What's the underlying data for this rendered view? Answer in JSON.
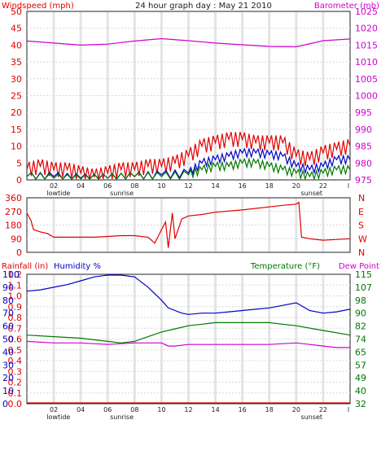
{
  "title": "24 hour graph day : May 21 2010",
  "colors": {
    "red": "#e00000",
    "blue": "#0000c8",
    "green": "#007800",
    "magenta": "#d000d0",
    "grid": "#d8d8d8",
    "band": "#e4e4e4",
    "dark": "#202020"
  },
  "x_axis": {
    "hours": [
      "02",
      "04",
      "06",
      "08",
      "10",
      "12",
      "14",
      "16",
      "18",
      "20",
      "22"
    ],
    "last_tick": "l",
    "markers": [
      {
        "label": "lowtide",
        "hour": 1.5
      },
      {
        "label": "sunrise",
        "hour": 6.2
      },
      {
        "label": "sunset",
        "hour": 20.3
      }
    ]
  },
  "chart_data": [
    {
      "type": "line",
      "name": "wind-baro",
      "y_left": {
        "label": "Windspeed (mph)",
        "min": 0,
        "max": 50,
        "ticks": [
          "0",
          "5",
          "10",
          "15",
          "20",
          "25",
          "30",
          "35",
          "40",
          "45",
          "50"
        ]
      },
      "y_right": {
        "label": "Barometer (mb)",
        "min": 975,
        "max": 1025,
        "ticks": [
          "975",
          "980",
          "985",
          "990",
          "995",
          "1000",
          "1005",
          "1010",
          "1015",
          "1020",
          "1025"
        ]
      },
      "series": [
        {
          "axis": "right",
          "color": "magenta",
          "points": [
            [
              0,
              1016.2
            ],
            [
              2,
              1015.6
            ],
            [
              4,
              1015.0
            ],
            [
              6,
              1015.3
            ],
            [
              8,
              1016.2
            ],
            [
              10,
              1016.9
            ],
            [
              12,
              1016.3
            ],
            [
              14,
              1015.6
            ],
            [
              16,
              1015.1
            ],
            [
              18,
              1014.6
            ],
            [
              20,
              1014.5
            ],
            [
              22,
              1016.3
            ],
            [
              24,
              1016.8
            ]
          ]
        },
        {
          "axis": "left",
          "color": "red",
          "points": [
            [
              0,
              3
            ],
            [
              1,
              4
            ],
            [
              2,
              3
            ],
            [
              3,
              3
            ],
            [
              4,
              2
            ],
            [
              5,
              1
            ],
            [
              6,
              2
            ],
            [
              7,
              3
            ],
            [
              8,
              3
            ],
            [
              9,
              4
            ],
            [
              10,
              4
            ],
            [
              11,
              5
            ],
            [
              12,
              7
            ],
            [
              13,
              10
            ],
            [
              14,
              11
            ],
            [
              15,
              12
            ],
            [
              16,
              12
            ],
            [
              17,
              11
            ],
            [
              18,
              11
            ],
            [
              19,
              11
            ],
            [
              20,
              7
            ],
            [
              21,
              6
            ],
            [
              22,
              8
            ],
            [
              23,
              9
            ],
            [
              24,
              10
            ]
          ]
        },
        {
          "axis": "left",
          "color": "blue",
          "points": [
            [
              0,
              1
            ],
            [
              2,
              1
            ],
            [
              4,
              0.5
            ],
            [
              6,
              0.5
            ],
            [
              8,
              1
            ],
            [
              10,
              1.5
            ],
            [
              12,
              2
            ],
            [
              13,
              5
            ],
            [
              14,
              6
            ],
            [
              15,
              7
            ],
            [
              16,
              8
            ],
            [
              17,
              8
            ],
            [
              18,
              7.5
            ],
            [
              19,
              7
            ],
            [
              20,
              4
            ],
            [
              21,
              3
            ],
            [
              22,
              4
            ],
            [
              23,
              6
            ],
            [
              24,
              6
            ]
          ]
        },
        {
          "axis": "left",
          "color": "green",
          "points": [
            [
              0,
              1
            ],
            [
              2,
              0.5
            ],
            [
              4,
              0.3
            ],
            [
              6,
              0.5
            ],
            [
              8,
              1
            ],
            [
              10,
              1
            ],
            [
              12,
              1.5
            ],
            [
              13,
              3
            ],
            [
              14,
              4
            ],
            [
              15,
              4
            ],
            [
              16,
              5
            ],
            [
              17,
              5
            ],
            [
              18,
              4
            ],
            [
              19,
              3
            ],
            [
              20,
              2
            ],
            [
              21,
              1
            ],
            [
              22,
              2
            ],
            [
              23,
              3
            ],
            [
              24,
              3
            ]
          ]
        }
      ]
    },
    {
      "type": "line",
      "name": "wind-direction",
      "y_left": {
        "label": "",
        "min": 0,
        "max": 360,
        "ticks": [
          "0",
          "90",
          "180",
          "270",
          "360"
        ]
      },
      "y_right": {
        "label": "",
        "ticks": [
          "N",
          "W",
          "S",
          "E",
          "N"
        ]
      },
      "series": [
        {
          "axis": "left",
          "color": "red",
          "points": [
            [
              0,
              260
            ],
            [
              0.3,
              210
            ],
            [
              0.5,
              150
            ],
            [
              1,
              135
            ],
            [
              1.5,
              125
            ],
            [
              2,
              100
            ],
            [
              3,
              100
            ],
            [
              4,
              100
            ],
            [
              5,
              100
            ],
            [
              6,
              105
            ],
            [
              7,
              110
            ],
            [
              8,
              110
            ],
            [
              9,
              100
            ],
            [
              9.5,
              60
            ],
            [
              10,
              150
            ],
            [
              10.3,
              200
            ],
            [
              10.5,
              30
            ],
            [
              10.8,
              260
            ],
            [
              11,
              90
            ],
            [
              11.5,
              220
            ],
            [
              12,
              240
            ],
            [
              13,
              250
            ],
            [
              14,
              265
            ],
            [
              16,
              280
            ],
            [
              18,
              300
            ],
            [
              19,
              310
            ],
            [
              20,
              318
            ],
            [
              20.2,
              330
            ],
            [
              20.4,
              100
            ],
            [
              21,
              90
            ],
            [
              22,
              80
            ],
            [
              23,
              85
            ],
            [
              24,
              90
            ]
          ]
        }
      ]
    },
    {
      "type": "line",
      "name": "rain-humidity-temp",
      "y_left": {
        "label": "Rainfall (in)",
        "min": 0,
        "max": 1.2,
        "ticks": [
          "0.0",
          "0.1",
          "0.2",
          "0.3",
          "0.4",
          "0.5",
          "0.6",
          "0.7",
          "0.8",
          "0.9",
          "1.0",
          "1.1",
          "1.2"
        ]
      },
      "y_left2": {
        "label": "Humidity %",
        "min": 0,
        "max": 100,
        "ticks": [
          "0",
          "10",
          "20",
          "30",
          "40",
          "50",
          "60",
          "70",
          "80",
          "90",
          "100"
        ]
      },
      "y_right": {
        "label": "Temperature (°F)",
        "label2": "Dew Point",
        "min": 32,
        "max": 115,
        "ticks": [
          "32",
          "40",
          "49",
          "57",
          "65",
          "74",
          "82",
          "90",
          "98",
          "107",
          "115"
        ]
      },
      "series": [
        {
          "axis": "left2",
          "color": "blue",
          "points": [
            [
              0,
              87
            ],
            [
              1,
              88
            ],
            [
              2,
              90
            ],
            [
              3,
              92
            ],
            [
              4,
              95
            ],
            [
              5,
              98
            ],
            [
              6,
              100
            ],
            [
              7,
              101
            ],
            [
              8,
              98
            ],
            [
              9,
              90
            ],
            [
              10,
              80
            ],
            [
              10.5,
              74
            ],
            [
              11,
              72
            ],
            [
              11.5,
              70
            ],
            [
              12,
              69
            ],
            [
              13,
              70
            ],
            [
              14,
              70
            ],
            [
              15,
              71
            ],
            [
              16,
              72
            ],
            [
              17,
              73
            ],
            [
              18,
              74
            ],
            [
              19,
              76
            ],
            [
              20,
              78
            ],
            [
              21,
              72
            ],
            [
              22,
              70
            ],
            [
              23,
              71
            ],
            [
              24,
              73
            ]
          ]
        },
        {
          "axis": "right",
          "color": "green",
          "points": [
            [
              0,
              76
            ],
            [
              2,
              75
            ],
            [
              4,
              74
            ],
            [
              6,
              72
            ],
            [
              7,
              71
            ],
            [
              8,
              72
            ],
            [
              9,
              75
            ],
            [
              10,
              78
            ],
            [
              11,
              80
            ],
            [
              12,
              82
            ],
            [
              13,
              83
            ],
            [
              14,
              84
            ],
            [
              16,
              84
            ],
            [
              18,
              84
            ],
            [
              19,
              83
            ],
            [
              20,
              82
            ],
            [
              22,
              79
            ],
            [
              24,
              76
            ]
          ]
        },
        {
          "axis": "right",
          "color": "magenta",
          "points": [
            [
              0,
              72
            ],
            [
              2,
              71
            ],
            [
              4,
              71
            ],
            [
              6,
              70
            ],
            [
              8,
              71
            ],
            [
              9,
              71
            ],
            [
              10,
              71
            ],
            [
              10.5,
              69
            ],
            [
              11,
              69
            ],
            [
              12,
              70
            ],
            [
              14,
              70
            ],
            [
              16,
              70
            ],
            [
              18,
              70
            ],
            [
              20,
              71
            ],
            [
              21,
              70
            ],
            [
              22,
              69
            ],
            [
              23,
              68
            ],
            [
              24,
              68
            ]
          ]
        },
        {
          "axis": "left",
          "color": "red",
          "points": [
            [
              0,
              0
            ],
            [
              24,
              0
            ]
          ]
        }
      ]
    }
  ]
}
